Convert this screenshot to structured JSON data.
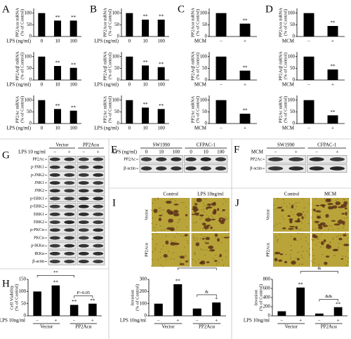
{
  "panel_letters": [
    "A",
    "B",
    "C",
    "D",
    "G",
    "E",
    "F",
    "I",
    "J",
    "H"
  ],
  "chart_data": [
    {
      "type": "bar",
      "ylabel": [
        "PP2Acα mRNA",
        "(% of Control)"
      ],
      "xlabel": "LPS (ng/ml)",
      "categories": [
        "0",
        "10",
        "100"
      ],
      "values": [
        100,
        68,
        68
      ],
      "annotations": [
        null,
        "**",
        "**"
      ],
      "ylim": [
        0,
        120
      ],
      "yticks": [
        0,
        50,
        100
      ],
      "color": "#000000"
    },
    {
      "type": "bar",
      "ylabel": [
        "PP2Acβ mRNA",
        "(% of Control)"
      ],
      "xlabel": "LPS (ng/ml)",
      "categories": [
        "0",
        "10",
        "100"
      ],
      "values": [
        100,
        60,
        52
      ],
      "annotations": [
        null,
        "**",
        "**"
      ],
      "ylim": [
        0,
        120
      ],
      "yticks": [
        0,
        50,
        100
      ],
      "color": "#000000"
    },
    {
      "type": "bar",
      "ylabel": [
        "PP2Ac mRNA",
        "(% of Control)"
      ],
      "xlabel": "LPS (ng/ml)",
      "categories": [
        "0",
        "10",
        "100"
      ],
      "values": [
        100,
        62,
        55
      ],
      "annotations": [
        null,
        "**",
        "**"
      ],
      "ylim": [
        0,
        120
      ],
      "yticks": [
        0,
        50,
        100
      ],
      "color": "#000000"
    },
    {
      "type": "bar",
      "ylabel": [
        "PP2Acα mRNA",
        "(% of Control)"
      ],
      "xlabel": "LPS (ng/ml)",
      "categories": [
        "0",
        "10",
        "100"
      ],
      "values": [
        100,
        72,
        72
      ],
      "annotations": [
        null,
        "**",
        "**"
      ],
      "ylim": [
        0,
        120
      ],
      "yticks": [
        0,
        50,
        100
      ],
      "color": "#000000"
    },
    {
      "type": "bar",
      "ylabel": [
        "PP2Acβ mRNA",
        "(% of Control)"
      ],
      "xlabel": "LPS (ng/ml)",
      "categories": [
        "0",
        "10",
        "100"
      ],
      "values": [
        100,
        62,
        55
      ],
      "annotations": [
        null,
        "**",
        "**"
      ],
      "ylim": [
        0,
        120
      ],
      "yticks": [
        0,
        50,
        100
      ],
      "color": "#000000"
    },
    {
      "type": "bar",
      "ylabel": [
        "PP2Ac mRNA",
        "(% of Control)"
      ],
      "xlabel": "LPS (ng/ml)",
      "categories": [
        "0",
        "10",
        "100"
      ],
      "values": [
        100,
        68,
        62
      ],
      "annotations": [
        null,
        "**",
        "**"
      ],
      "ylim": [
        0,
        120
      ],
      "yticks": [
        0,
        50,
        100
      ],
      "color": "#000000"
    },
    {
      "type": "bar",
      "ylabel": [
        "PP2Acα mRNA",
        "(% of Control)"
      ],
      "xlabel": "MCM",
      "categories": [
        "−",
        "+"
      ],
      "values": [
        100,
        55
      ],
      "annotations": [
        null,
        "**"
      ],
      "ylim": [
        0,
        120
      ],
      "yticks": [
        0,
        50,
        100
      ],
      "color": "#000000"
    },
    {
      "type": "bar",
      "ylabel": [
        "PP2Acβ mRNA",
        "(% of Control)"
      ],
      "xlabel": "MCM",
      "categories": [
        "−",
        "+"
      ],
      "values": [
        100,
        40
      ],
      "annotations": [
        null,
        "**"
      ],
      "ylim": [
        0,
        120
      ],
      "yticks": [
        0,
        50,
        100
      ],
      "color": "#000000"
    },
    {
      "type": "bar",
      "ylabel": [
        "PP2Ac mRNA",
        "(% of Control)"
      ],
      "xlabel": "MCM",
      "categories": [
        "−",
        "+"
      ],
      "values": [
        100,
        42
      ],
      "annotations": [
        null,
        "**"
      ],
      "ylim": [
        0,
        120
      ],
      "yticks": [
        0,
        50,
        100
      ],
      "color": "#000000"
    },
    {
      "type": "bar",
      "ylabel": [
        "PP2Acα mRNA",
        "(% of Control)"
      ],
      "xlabel": "MCM",
      "categories": [
        "−",
        "+"
      ],
      "values": [
        100,
        45
      ],
      "annotations": [
        null,
        "**"
      ],
      "ylim": [
        0,
        120
      ],
      "yticks": [
        0,
        50,
        100
      ],
      "color": "#000000"
    },
    {
      "type": "bar",
      "ylabel": [
        "PP2Acβ mRNA",
        "(% of Control)"
      ],
      "xlabel": "MCM",
      "categories": [
        "−",
        "+"
      ],
      "values": [
        100,
        45
      ],
      "annotations": [
        null,
        "**"
      ],
      "ylim": [
        0,
        120
      ],
      "yticks": [
        0,
        50,
        100
      ],
      "color": "#000000"
    },
    {
      "type": "bar",
      "ylabel": [
        "PP2Ac mRNA",
        "(% of Control)"
      ],
      "xlabel": "MCM",
      "categories": [
        "−",
        "+"
      ],
      "values": [
        100,
        35
      ],
      "annotations": [
        null,
        "**"
      ],
      "ylim": [
        0,
        120
      ],
      "yticks": [
        0,
        50,
        100
      ],
      "color": "#000000"
    },
    {
      "type": "bar",
      "ylabel": [
        "Cell Viability",
        "(% of Control)"
      ],
      "xlabel": "LPS 10ng/ml",
      "categories": [
        "−",
        "+",
        "−",
        "+"
      ],
      "groups": [
        "Vector",
        "PP2Acα"
      ],
      "values": [
        100,
        125,
        45,
        50
      ],
      "annotations": [
        null,
        "**",
        "**",
        "**"
      ],
      "brackets": [
        "**",
        "P>0.05"
      ],
      "ylim": [
        0,
        150
      ],
      "yticks": [
        0,
        50,
        100,
        150
      ],
      "color": "#000000"
    },
    {
      "type": "bar",
      "ylabel": [
        "Invasion",
        "(% of Control)"
      ],
      "xlabel": "LPS 10ng/ml",
      "categories": [
        "−",
        "+",
        "−",
        "+"
      ],
      "groups": [
        "Vector",
        "PP2Acα"
      ],
      "values": [
        100,
        260,
        60,
        110
      ],
      "annotations": [
        null,
        "**",
        null,
        "*"
      ],
      "brackets": [
        "&",
        "&"
      ],
      "ylim": [
        0,
        300
      ],
      "yticks": [
        0,
        100,
        200,
        300
      ],
      "color": "#000000"
    },
    {
      "type": "bar",
      "ylabel": [
        "Invasion",
        "(% of Control)"
      ],
      "xlabel": "LPS 10ng/ml",
      "categories": [
        "−",
        "+",
        "−",
        "+"
      ],
      "groups": [
        "Vector",
        "PP2Acα"
      ],
      "values": [
        100,
        620,
        50,
        190
      ],
      "annotations": [
        null,
        "**",
        null,
        "**"
      ],
      "brackets": [
        "&",
        "&&"
      ],
      "ylim": [
        0,
        800
      ],
      "yticks": [
        0,
        200,
        400,
        600,
        800
      ],
      "color": "#000000"
    }
  ],
  "blots": {
    "G": {
      "groups": [
        "Vector",
        "PP2Acα"
      ],
      "treatment": "LPS 10 ng/ml",
      "lanes": [
        "−",
        "+",
        "−",
        "+"
      ],
      "rows": [
        "PP2Ac",
        "p-JNK1",
        "p-JNK2",
        "JNK1",
        "JNK2",
        "p-ERK1",
        "p-ERK2",
        "ERK1",
        "ERK2",
        "p-PKCα",
        "PKCα",
        "p-IKKα",
        "IKKα",
        "β-actin"
      ]
    },
    "E": {
      "groups": [
        "SW1990",
        "CFPAC-1"
      ],
      "treatment": "LPS (ng/ml)",
      "lanes": [
        "0",
        "10",
        "100",
        "0",
        "10",
        "100"
      ],
      "rows": [
        "PP2Ac",
        "β-actin"
      ]
    },
    "F": {
      "groups": [
        "SW1990",
        "CFPAC-1"
      ],
      "treatment": "MCM",
      "lanes": [
        "−",
        "+",
        "−",
        "+"
      ],
      "rows": [
        "PP2Ac",
        "β-actin"
      ]
    }
  },
  "micrographs": {
    "I": {
      "columns": [
        "Control",
        "LPS 10ng/ml"
      ],
      "rows": [
        "Vector",
        "PP2Acα"
      ]
    },
    "J": {
      "columns": [
        "Control",
        "MCM"
      ],
      "rows": [
        "Vector",
        "PP2Acα"
      ]
    }
  }
}
